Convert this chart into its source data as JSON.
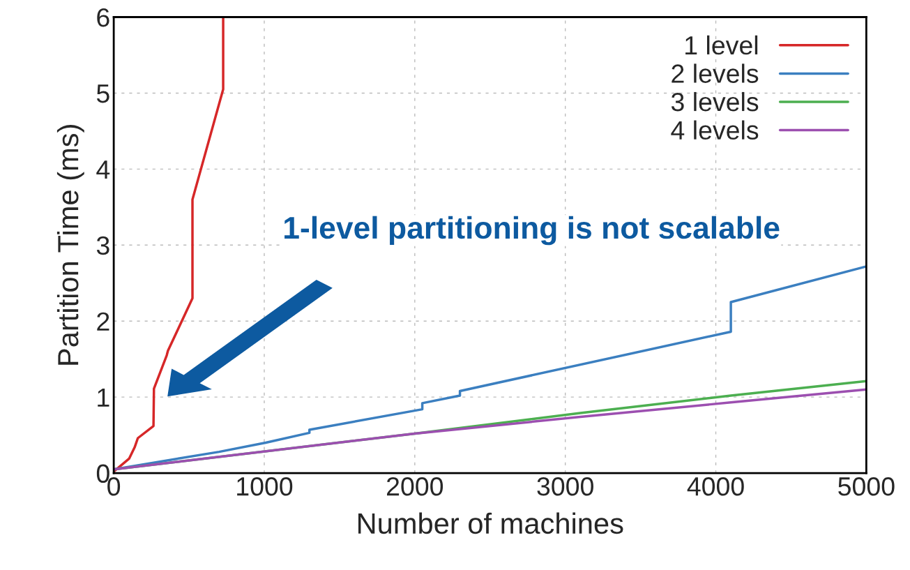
{
  "chart_data": {
    "type": "line",
    "xlabel": "Number of machines",
    "ylabel": "Partition Time (ms)",
    "series": [
      {
        "name": "1 level",
        "color": "#d62728",
        "x": [
          0,
          102,
          139,
          160,
          264,
          267,
          352,
          360,
          523,
          523,
          727,
          727
        ],
        "values": [
          0.02,
          0.19,
          0.34,
          0.46,
          0.62,
          1.11,
          1.55,
          1.61,
          2.3,
          3.6,
          5.05,
          6
        ]
      },
      {
        "name": "2 levels",
        "color": "#3b7fc0",
        "x": [
          0,
          700,
          1010,
          1300,
          1300,
          2050,
          2050,
          2300,
          2300,
          4100,
          4100,
          5000
        ],
        "values": [
          0.05,
          0.28,
          0.4,
          0.53,
          0.57,
          0.84,
          0.92,
          1.02,
          1.08,
          1.86,
          2.25,
          2.72
        ]
      },
      {
        "name": "3 levels",
        "color": "#4caf50",
        "x": [
          0,
          2000,
          3100,
          4100,
          5000
        ],
        "values": [
          0.05,
          0.52,
          0.79,
          1.02,
          1.21
        ]
      },
      {
        "name": "4 levels",
        "color": "#9c4fb0",
        "x": [
          0,
          2000,
          3100,
          4100,
          5000
        ],
        "values": [
          0.05,
          0.52,
          0.74,
          0.93,
          1.1
        ]
      }
    ],
    "xlim": [
      0,
      5000
    ],
    "ylim": [
      0,
      6
    ],
    "xticks": [
      0,
      1000,
      2000,
      3000,
      4000,
      5000
    ],
    "yticks": [
      0,
      1,
      2,
      3,
      4,
      5,
      6
    ],
    "grid": true,
    "legend": "top right",
    "annotations": [
      "1-level partitioning is not scalable"
    ]
  }
}
